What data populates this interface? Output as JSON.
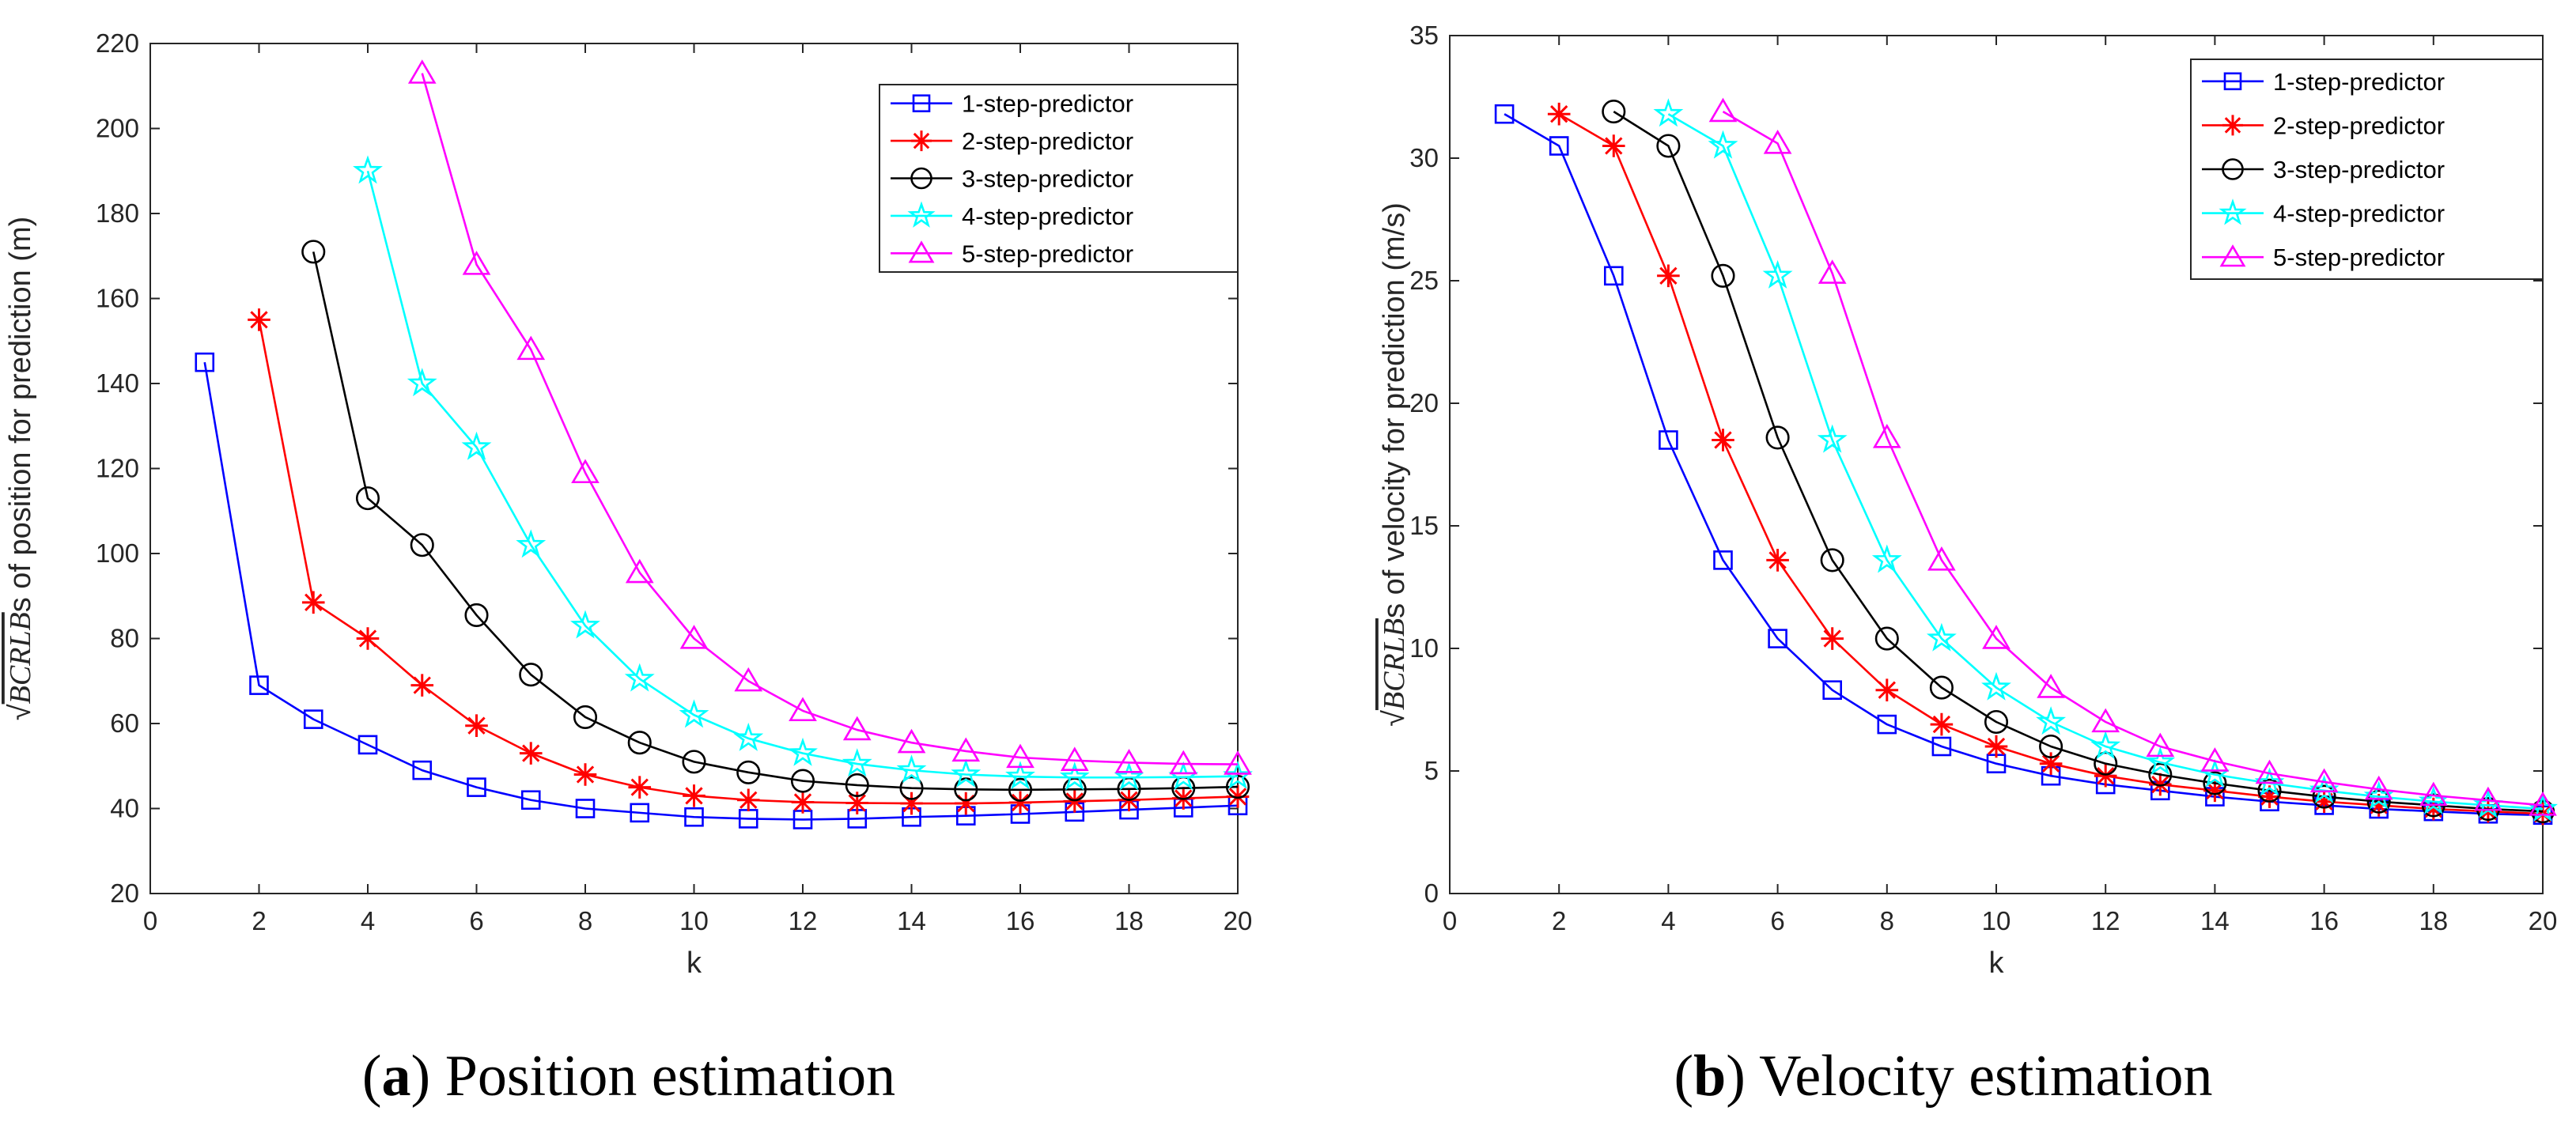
{
  "colors": {
    "1-step-predictor": "#0000ff",
    "2-step-predictor": "#ff0000",
    "3-step-predictor": "#000000",
    "4-step-predictor": "#00ffff",
    "5-step-predictor": "#ff00ff"
  },
  "chart_data": [
    {
      "type": "line",
      "caption_label": "a",
      "caption_text": "Position estimation",
      "xlabel": "k",
      "ylabel_math": "BCRLB",
      "ylabel_rest": "s of position for prediction (m)",
      "xlim": [
        0,
        20
      ],
      "ylim": [
        20,
        220
      ],
      "xticks": [
        0,
        2,
        4,
        6,
        8,
        10,
        12,
        14,
        16,
        18,
        20
      ],
      "yticks": [
        20,
        40,
        60,
        80,
        100,
        120,
        140,
        160,
        180,
        200,
        220
      ],
      "grid": false,
      "legend_position": "top-right",
      "series": [
        {
          "name": "1-step-predictor",
          "marker": "square",
          "x": [
            1,
            2,
            3,
            4,
            5,
            6,
            7,
            8,
            9,
            10,
            11,
            12,
            13,
            14,
            15,
            16,
            17,
            18,
            19,
            20
          ],
          "values": [
            145,
            69,
            61,
            55,
            49,
            45,
            42,
            40,
            39,
            38,
            37.6,
            37.4,
            37.6,
            38,
            38.3,
            38.7,
            39.2,
            39.7,
            40.2,
            40.7
          ]
        },
        {
          "name": "2-step-predictor",
          "marker": "asterisk",
          "x": [
            2,
            3,
            4,
            5,
            6,
            7,
            8,
            9,
            10,
            11,
            12,
            13,
            14,
            15,
            16,
            17,
            18,
            19,
            20
          ],
          "values": [
            155,
            88.5,
            80,
            69,
            59.5,
            53,
            48,
            45,
            43,
            42,
            41.5,
            41.3,
            41.2,
            41.2,
            41.4,
            41.7,
            42,
            42.4,
            42.8
          ]
        },
        {
          "name": "3-step-predictor",
          "marker": "circle",
          "x": [
            3,
            4,
            5,
            6,
            7,
            8,
            9,
            10,
            11,
            12,
            13,
            14,
            15,
            16,
            17,
            18,
            19,
            20
          ],
          "values": [
            171,
            113,
            102,
            85.5,
            71.5,
            61.5,
            55.5,
            51,
            48.5,
            46.5,
            45.5,
            44.8,
            44.5,
            44.4,
            44.5,
            44.6,
            44.8,
            45.1
          ]
        },
        {
          "name": "4-step-predictor",
          "marker": "pentagram",
          "x": [
            4,
            5,
            6,
            7,
            8,
            9,
            10,
            11,
            12,
            13,
            14,
            15,
            16,
            17,
            18,
            19,
            20
          ],
          "values": [
            190,
            140,
            125,
            102,
            83,
            70.5,
            62,
            56.5,
            53,
            50.5,
            49,
            48,
            47.5,
            47.3,
            47.3,
            47.4,
            47.6
          ]
        },
        {
          "name": "5-step-predictor",
          "marker": "triangle",
          "x": [
            5,
            6,
            7,
            8,
            9,
            10,
            11,
            12,
            13,
            14,
            15,
            16,
            17,
            18,
            19,
            20
          ],
          "values": [
            213,
            168,
            148,
            119,
            95.5,
            80,
            70,
            63,
            58.5,
            55.5,
            53.5,
            52,
            51.3,
            50.8,
            50.5,
            50.4
          ]
        }
      ]
    },
    {
      "type": "line",
      "caption_label": "b",
      "caption_text": "Velocity estimation",
      "xlabel": "k",
      "ylabel_math": "BCRLB",
      "ylabel_rest": "s of velocity for prediction (m/s)",
      "xlim": [
        0,
        20
      ],
      "ylim": [
        0,
        35
      ],
      "xticks": [
        0,
        2,
        4,
        6,
        8,
        10,
        12,
        14,
        16,
        18,
        20
      ],
      "yticks": [
        0,
        5,
        10,
        15,
        20,
        25,
        30,
        35
      ],
      "grid": false,
      "legend_position": "top-right",
      "series": [
        {
          "name": "1-step-predictor",
          "marker": "square",
          "x": [
            1,
            2,
            3,
            4,
            5,
            6,
            7,
            8,
            9,
            10,
            11,
            12,
            13,
            14,
            15,
            16,
            17,
            18,
            19,
            20
          ],
          "values": [
            31.8,
            30.5,
            25.2,
            18.5,
            13.6,
            10.4,
            8.3,
            6.9,
            6.0,
            5.3,
            4.8,
            4.45,
            4.2,
            3.95,
            3.75,
            3.6,
            3.45,
            3.35,
            3.25,
            3.2
          ]
        },
        {
          "name": "2-step-predictor",
          "marker": "asterisk",
          "x": [
            2,
            3,
            4,
            5,
            6,
            7,
            8,
            9,
            10,
            11,
            12,
            13,
            14,
            15,
            16,
            17,
            18,
            19,
            20
          ],
          "values": [
            31.8,
            30.5,
            25.2,
            18.5,
            13.6,
            10.4,
            8.3,
            6.9,
            6.0,
            5.3,
            4.8,
            4.45,
            4.2,
            3.95,
            3.75,
            3.6,
            3.45,
            3.35,
            3.25
          ]
        },
        {
          "name": "3-step-predictor",
          "marker": "circle",
          "x": [
            3,
            4,
            5,
            6,
            7,
            8,
            9,
            10,
            11,
            12,
            13,
            14,
            15,
            16,
            17,
            18,
            19,
            20
          ],
          "values": [
            31.9,
            30.5,
            25.2,
            18.6,
            13.6,
            10.4,
            8.4,
            7.0,
            6.0,
            5.3,
            4.85,
            4.5,
            4.2,
            3.95,
            3.75,
            3.6,
            3.45,
            3.35
          ]
        },
        {
          "name": "4-step-predictor",
          "marker": "pentagram",
          "x": [
            4,
            5,
            6,
            7,
            8,
            9,
            10,
            11,
            12,
            13,
            14,
            15,
            16,
            17,
            18,
            19,
            20
          ],
          "values": [
            31.8,
            30.5,
            25.2,
            18.5,
            13.6,
            10.4,
            8.4,
            7.0,
            6.0,
            5.35,
            4.85,
            4.5,
            4.2,
            3.95,
            3.75,
            3.6,
            3.45
          ]
        },
        {
          "name": "5-step-predictor",
          "marker": "triangle",
          "x": [
            5,
            6,
            7,
            8,
            9,
            10,
            11,
            12,
            13,
            14,
            15,
            16,
            17,
            18,
            19,
            20
          ],
          "values": [
            31.9,
            30.6,
            25.3,
            18.6,
            13.6,
            10.4,
            8.4,
            7.0,
            6.0,
            5.4,
            4.9,
            4.55,
            4.25,
            4.0,
            3.8,
            3.6
          ]
        }
      ]
    }
  ]
}
